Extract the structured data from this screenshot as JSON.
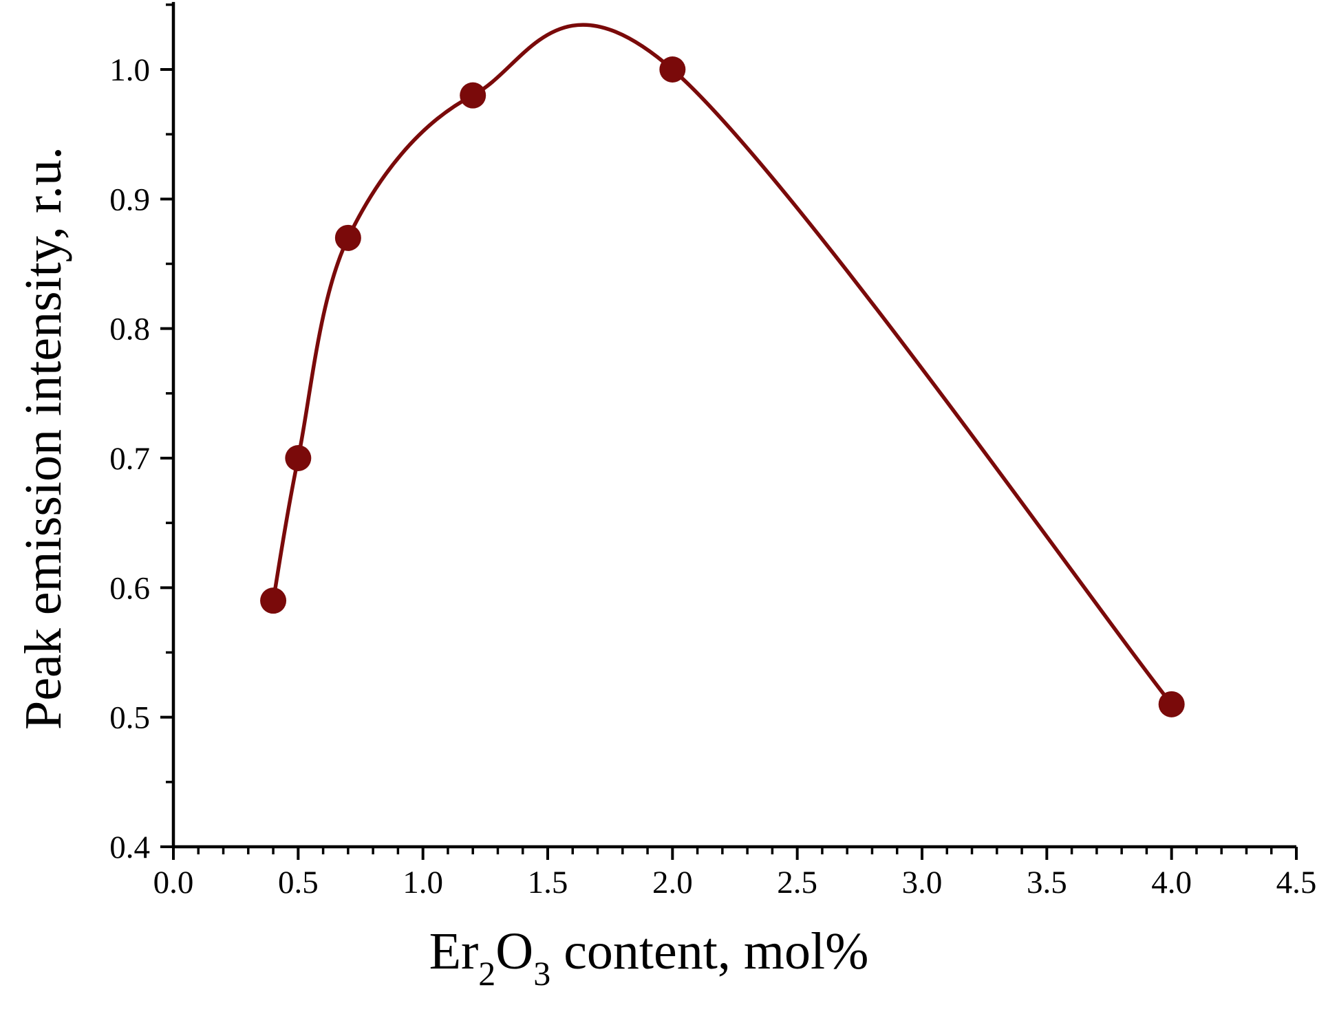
{
  "chart_data": {
    "type": "line",
    "xlabel": {
      "parts": [
        {
          "text": "Er",
          "sub": false
        },
        {
          "text": "2",
          "sub": true
        },
        {
          "text": "O",
          "sub": false
        },
        {
          "text": "3",
          "sub": true
        },
        {
          "text": " content, mol%",
          "sub": false
        }
      ]
    },
    "ylabel": "Peak emission intensity, r.u.",
    "xlim": [
      0.0,
      4.5
    ],
    "ylim": [
      0.4,
      1.05
    ],
    "x_ticks": [
      "0.0",
      "0.5",
      "1.0",
      "1.5",
      "2.0",
      "2.5",
      "3.0",
      "3.5",
      "4.0",
      "4.5"
    ],
    "y_ticks": [
      "0.4",
      "0.5",
      "0.6",
      "0.7",
      "0.8",
      "0.9",
      "1.0"
    ],
    "x_minor_step": 0.1,
    "y_minor_step": 0.05,
    "grid": false,
    "color": "#7a0a0a",
    "series": [
      {
        "markers": true,
        "smooth_line": true,
        "x": [
          0.4,
          0.5,
          0.7,
          1.2,
          2.0,
          4.0
        ],
        "y": [
          0.59,
          0.7,
          0.87,
          0.98,
          1.0,
          0.51
        ]
      }
    ]
  }
}
